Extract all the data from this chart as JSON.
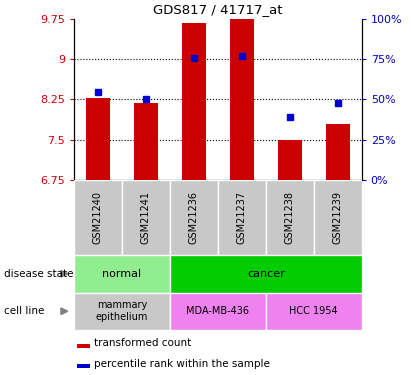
{
  "title": "GDS817 / 41717_at",
  "samples": [
    "GSM21240",
    "GSM21241",
    "GSM21236",
    "GSM21237",
    "GSM21238",
    "GSM21239"
  ],
  "bar_values": [
    8.28,
    8.18,
    9.67,
    9.75,
    7.5,
    7.8
  ],
  "bar_bottom": 6.75,
  "dot_values": [
    8.38,
    8.25,
    9.02,
    9.05,
    7.93,
    8.18
  ],
  "ylim_left": [
    6.75,
    9.75
  ],
  "ylim_right": [
    0,
    100
  ],
  "yticks_left": [
    6.75,
    7.5,
    8.25,
    9.0,
    9.75
  ],
  "yticks_right": [
    0,
    25,
    50,
    75,
    100
  ],
  "ytick_left_labels": [
    "6.75",
    "7.5",
    "8.25",
    "9",
    "9.75"
  ],
  "ytick_right_labels": [
    "0%",
    "25%",
    "50%",
    "75%",
    "100%"
  ],
  "hlines": [
    7.5,
    8.25,
    9.0
  ],
  "bar_color": "#CC0000",
  "dot_color": "#0000CC",
  "bar_width": 0.5,
  "disease_normal_color": "#90EE90",
  "disease_cancer_color": "#00CC00",
  "cell_mammary_color": "#C8C8C8",
  "cell_mda_color": "#EE82EE",
  "cell_hcc_color": "#EE82EE",
  "bg_color": "#FFFFFF",
  "left_label_color": "#CC0000",
  "right_label_color": "#0000CC",
  "tick_area_bg": "#C8C8C8",
  "legend_red_label": "transformed count",
  "legend_blue_label": "percentile rank within the sample",
  "disease_state_label": "disease state",
  "cell_line_label": "cell line"
}
